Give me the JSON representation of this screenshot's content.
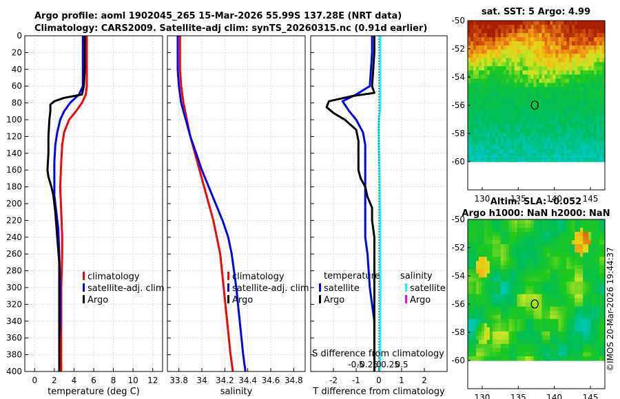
{
  "title_line1": "Argo profile: aoml 1902045_265 15-Mar-2026 55.99S 137.28E (NRT data)",
  "title_line2": "Climatology: CARS2009. Satellite-adj clim: synTS_20260315.nc (0.91d earlier)",
  "timestamp": "©IMOS 20-Mar-2026 19:44:37",
  "colors": {
    "climatology": "#ff0000",
    "satellite": "#0000ff",
    "argo": "#000000",
    "sal_satellite": "#00ffff",
    "sal_argo": "#ff00ff"
  },
  "chart_data": [
    {
      "type": "line",
      "name": "temperature",
      "xlabel": "temperature (deg C)",
      "ylabel": "",
      "xlim": [
        -1,
        13
      ],
      "ylim": [
        400,
        0
      ],
      "xticks": [
        0,
        2,
        4,
        6,
        8,
        10,
        12
      ],
      "xtick_labels": [
        "0",
        "2",
        "4",
        "6",
        "8",
        "10",
        "12"
      ],
      "yticks": [
        0,
        20,
        40,
        60,
        80,
        100,
        120,
        140,
        160,
        180,
        200,
        220,
        240,
        260,
        280,
        300,
        320,
        340,
        360,
        380,
        400
      ],
      "ytick_labels": [
        "0",
        "20",
        "40",
        "60",
        "80",
        "100",
        "120",
        "140",
        "160",
        "180",
        "200",
        "220",
        "240",
        "260",
        "280",
        "300",
        "320",
        "340",
        "360",
        "380",
        "400"
      ],
      "grid": true,
      "legend": [
        "climatology",
        "satellite-adj. clim",
        "Argo"
      ],
      "series": [
        {
          "name": "climatology",
          "color": "#ff0000",
          "points": [
            [
              5.3,
              0
            ],
            [
              5.3,
              20
            ],
            [
              5.3,
              40
            ],
            [
              5.3,
              60
            ],
            [
              5.2,
              70
            ],
            [
              4.8,
              80
            ],
            [
              4.2,
              90
            ],
            [
              3.5,
              100
            ],
            [
              3.0,
              115
            ],
            [
              2.8,
              130
            ],
            [
              2.7,
              150
            ],
            [
              2.6,
              180
            ],
            [
              2.7,
              210
            ],
            [
              2.8,
              240
            ],
            [
              2.8,
              260
            ],
            [
              2.7,
              300
            ],
            [
              2.7,
              340
            ],
            [
              2.7,
              370
            ],
            [
              2.7,
              400
            ]
          ]
        },
        {
          "name": "satellite-adj. clim",
          "color": "#0000ff",
          "points": [
            [
              4.9,
              0
            ],
            [
              4.9,
              20
            ],
            [
              4.9,
              40
            ],
            [
              4.9,
              60
            ],
            [
              4.5,
              70
            ],
            [
              3.6,
              80
            ],
            [
              3.0,
              90
            ],
            [
              2.6,
              100
            ],
            [
              2.3,
              115
            ],
            [
              2.1,
              130
            ],
            [
              2.0,
              150
            ],
            [
              2.0,
              170
            ],
            [
              2.0,
              190
            ],
            [
              2.2,
              210
            ],
            [
              2.4,
              230
            ],
            [
              2.5,
              260
            ],
            [
              2.6,
              300
            ],
            [
              2.6,
              340
            ],
            [
              2.5,
              370
            ],
            [
              2.5,
              400
            ]
          ]
        },
        {
          "name": "Argo",
          "color": "#000000",
          "points": [
            [
              5.1,
              0
            ],
            [
              5.1,
              20
            ],
            [
              5.1,
              40
            ],
            [
              5.0,
              60
            ],
            [
              4.8,
              70
            ],
            [
              3.0,
              74
            ],
            [
              2.0,
              78
            ],
            [
              1.6,
              82
            ],
            [
              1.6,
              90
            ],
            [
              1.5,
              100
            ],
            [
              1.4,
              120
            ],
            [
              1.4,
              140
            ],
            [
              1.3,
              160
            ],
            [
              1.4,
              168
            ],
            [
              1.7,
              180
            ],
            [
              1.9,
              190
            ],
            [
              2.1,
              210
            ],
            [
              2.3,
              240
            ],
            [
              2.5,
              270
            ],
            [
              2.5,
              300
            ],
            [
              2.5,
              340
            ],
            [
              2.5,
              370
            ],
            [
              2.5,
              400
            ]
          ]
        }
      ]
    },
    {
      "type": "line",
      "name": "salinity",
      "xlabel": "salinity",
      "ylabel": "",
      "xlim": [
        33.7,
        34.9
      ],
      "ylim": [
        400,
        0
      ],
      "xticks": [
        33.8,
        34.0,
        34.2,
        34.4,
        34.6,
        34.8
      ],
      "xtick_labels": [
        "33.8",
        "34",
        "34.2",
        "34.4",
        "34.6",
        "34.8"
      ],
      "grid": true,
      "legend": [
        "climatology",
        "satellite-adj. clim",
        "Argo"
      ],
      "series": [
        {
          "name": "climatology",
          "color": "#ff0000",
          "points": [
            [
              33.81,
              0
            ],
            [
              33.81,
              40
            ],
            [
              33.82,
              60
            ],
            [
              33.84,
              80
            ],
            [
              33.87,
              100
            ],
            [
              33.9,
              120
            ],
            [
              33.94,
              140
            ],
            [
              33.98,
              160
            ],
            [
              34.02,
              180
            ],
            [
              34.06,
              200
            ],
            [
              34.1,
              220
            ],
            [
              34.13,
              240
            ],
            [
              34.16,
              260
            ],
            [
              34.19,
              300
            ],
            [
              34.22,
              340
            ],
            [
              34.25,
              380
            ],
            [
              34.27,
              400
            ]
          ]
        },
        {
          "name": "satellite-adj. clim",
          "color": "#0000ff",
          "points": [
            [
              33.79,
              0
            ],
            [
              33.79,
              40
            ],
            [
              33.8,
              60
            ],
            [
              33.82,
              80
            ],
            [
              33.86,
              100
            ],
            [
              33.9,
              120
            ],
            [
              33.95,
              140
            ],
            [
              34.0,
              160
            ],
            [
              34.06,
              180
            ],
            [
              34.12,
              200
            ],
            [
              34.18,
              220
            ],
            [
              34.23,
              240
            ],
            [
              34.26,
              260
            ],
            [
              34.3,
              300
            ],
            [
              34.33,
              340
            ],
            [
              34.36,
              380
            ],
            [
              34.38,
              400
            ]
          ]
        }
      ]
    },
    {
      "type": "line",
      "name": "difference",
      "xlabel": "T difference from climatology",
      "top_axis_label": "S difference from climatology",
      "xlim": [
        -3,
        3
      ],
      "ylim": [
        400,
        0
      ],
      "xticks": [
        -2,
        -1,
        0,
        1,
        2
      ],
      "xtick_labels": [
        "-2",
        "-1",
        "0",
        "1",
        "2"
      ],
      "s_ticks": [
        -0.5,
        -0.25,
        0,
        0.25,
        0.5
      ],
      "s_tick_labels": [
        "-0.5",
        "-0.25",
        "0",
        "0.25",
        "0.5"
      ],
      "grid": true,
      "legend_temperature_title": "temperature",
      "legend_salinity_title": "salinity",
      "legend_temperature": [
        "satellite",
        "Argo"
      ],
      "legend_salinity": [
        "satellite",
        "Argo"
      ],
      "series": [
        {
          "name": "T satellite",
          "color": "#0000ff",
          "points": [
            [
              -0.3,
              0
            ],
            [
              -0.3,
              20
            ],
            [
              -0.35,
              40
            ],
            [
              -0.4,
              60
            ],
            [
              -1.0,
              70
            ],
            [
              -1.6,
              78
            ],
            [
              -1.3,
              90
            ],
            [
              -1.0,
              100
            ],
            [
              -0.7,
              115
            ],
            [
              -0.6,
              130
            ],
            [
              -0.6,
              160
            ],
            [
              -0.6,
              200
            ],
            [
              -0.6,
              240
            ],
            [
              -0.5,
              260
            ],
            [
              -0.4,
              300
            ],
            [
              -0.2,
              340
            ],
            [
              -0.2,
              380
            ],
            [
              -0.2,
              400
            ]
          ]
        },
        {
          "name": "T Argo",
          "color": "#000000",
          "points": [
            [
              -0.2,
              0
            ],
            [
              -0.2,
              20
            ],
            [
              -0.25,
              40
            ],
            [
              -0.3,
              60
            ],
            [
              -0.2,
              68
            ],
            [
              -1.2,
              72
            ],
            [
              -2.2,
              78
            ],
            [
              -2.3,
              85
            ],
            [
              -2.0,
              92
            ],
            [
              -1.5,
              100
            ],
            [
              -1.0,
              112
            ],
            [
              -0.9,
              125
            ],
            [
              -0.9,
              140
            ],
            [
              -0.9,
              160
            ],
            [
              -0.8,
              170
            ],
            [
              -0.6,
              180
            ],
            [
              -0.5,
              192
            ],
            [
              -0.3,
              205
            ],
            [
              -0.3,
              220
            ],
            [
              -0.2,
              240
            ],
            [
              -0.2,
              260
            ],
            [
              -0.2,
              300
            ],
            [
              -0.2,
              340
            ],
            [
              -0.2,
              380
            ],
            [
              -0.2,
              400
            ]
          ]
        },
        {
          "name": "S satellite",
          "color": "#00ffff",
          "points": [
            [
              0.06,
              0
            ],
            [
              0.06,
              20
            ],
            [
              0.06,
              40
            ],
            [
              0.06,
              60
            ],
            [
              0.06,
              80
            ],
            [
              0.05,
              90
            ],
            [
              0.0,
              100
            ],
            [
              -0.01,
              110
            ],
            [
              0.0,
              130
            ],
            [
              0.03,
              160
            ],
            [
              0.05,
              200
            ],
            [
              0.06,
              240
            ],
            [
              0.07,
              300
            ],
            [
              0.06,
              340
            ],
            [
              0.05,
              380
            ],
            [
              0.04,
              400
            ]
          ]
        }
      ]
    },
    {
      "type": "heatmap",
      "name": "sst_map",
      "title": "sat. SST: 5 Argo: 4.99",
      "xlim": [
        128,
        147
      ],
      "ylim": [
        -62,
        -50
      ],
      "xticks": [
        130,
        135,
        140,
        145
      ],
      "xtick_labels": [
        "130",
        "135",
        "140",
        "145"
      ],
      "yticks": [
        -50,
        -52,
        -54,
        -56,
        -58,
        -60
      ],
      "ytick_labels": [
        "-50",
        "-52",
        "-54",
        "-56",
        "-58",
        "-60"
      ],
      "data_bottom_lat": -60,
      "marker": [
        137.28,
        -55.99
      ]
    },
    {
      "type": "heatmap",
      "name": "sla_map",
      "title": "Altim. SLA: -0.052",
      "subtitle": "Argo h1000: NaN h2000: NaN",
      "xlim": [
        128,
        147
      ],
      "ylim": [
        -62,
        -50
      ],
      "xticks": [
        130,
        135,
        140,
        145
      ],
      "xtick_labels": [
        "130",
        "135",
        "140",
        "145"
      ],
      "yticks": [
        -50,
        -52,
        -54,
        -56,
        -58,
        -60
      ],
      "ytick_labels": [
        "-50",
        "-52",
        "-54",
        "-56",
        "-58",
        "-60"
      ],
      "data_bottom_lat": -60,
      "marker": [
        137.28,
        -55.99
      ]
    }
  ]
}
